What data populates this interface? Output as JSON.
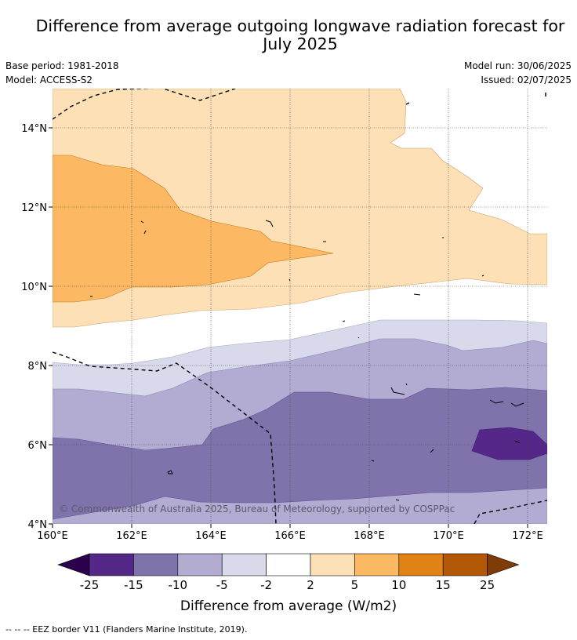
{
  "title": {
    "line1": "Difference from average outgoing longwave radiation forecast for",
    "line2": "July 2025"
  },
  "meta": {
    "base_period": "Base period: 1981-2018",
    "model": "Model: ACCESS-S2",
    "model_run": "Model run: 30/06/2025",
    "issued": "Issued: 02/07/2025"
  },
  "map": {
    "x_ticks": [
      "160°E",
      "162°E",
      "164°E",
      "166°E",
      "168°E",
      "170°E",
      "172°E"
    ],
    "y_ticks": [
      "14°N",
      "12°N",
      "10°N",
      "8°N",
      "6°N",
      "4°N"
    ],
    "copyright": "© Commonwealth of Australia 2025, Bureau of Meteorology, supported by COSPPac"
  },
  "colorbar": {
    "labels": [
      "-25",
      "-15",
      "-10",
      "-5",
      "-2",
      "2",
      "5",
      "10",
      "15",
      "25"
    ],
    "colors": [
      "#2d004b",
      "#542788",
      "#8073ac",
      "#b2abd2",
      "#d8daeb",
      "#ffffff",
      "#fee0b6",
      "#fdb863",
      "#e08214",
      "#b35806",
      "#7f3b08"
    ],
    "title": "Difference from average (W/m2)"
  },
  "legend": {
    "eez": "--  --  -- EEZ border V11 (Flanders Marine Institute, 2019)."
  }
}
